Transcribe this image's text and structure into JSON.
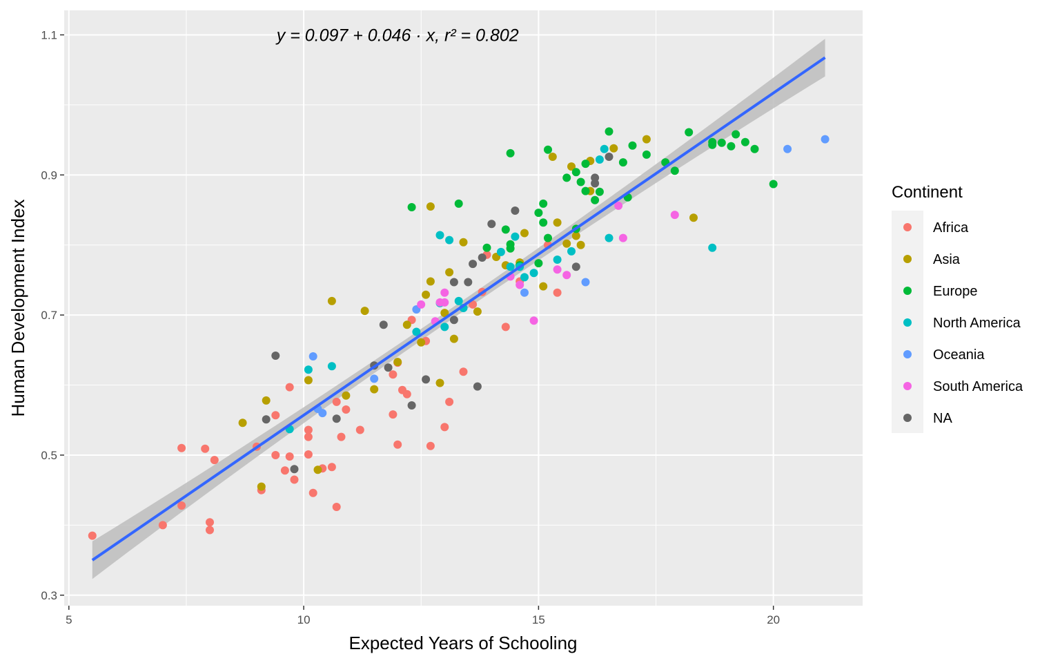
{
  "chart_data": {
    "type": "scatter",
    "xlabel": "Expected Years of Schooling",
    "ylabel": "Human Development Index",
    "xlim": [
      4.9,
      21.9
    ],
    "ylim": [
      0.285,
      1.135
    ],
    "x_ticks": [
      5,
      10,
      15,
      20
    ],
    "x_tick_labels": [
      "5",
      "10",
      "15",
      "20"
    ],
    "y_ticks": [
      0.3,
      0.5,
      0.7,
      0.9,
      1.1
    ],
    "y_tick_labels": [
      "0.3",
      "0.5",
      "0.7",
      "0.9",
      "1.1"
    ],
    "grid": true,
    "legend": {
      "title": "Continent",
      "placement": "right",
      "entries": [
        "Africa",
        "Asia",
        "Europe",
        "North America",
        "Oceania",
        "South America",
        "NA"
      ]
    },
    "annotation": "y = 0.097 + 0.046 · x,  r² = 0.802",
    "annotation_position": {
      "x": 12.0,
      "y": 1.1
    },
    "regression": {
      "intercept": 0.097,
      "slope": 0.046,
      "r2": 0.802,
      "x_range": [
        5.5,
        21.1
      ]
    },
    "colors": {
      "Africa": "#F8766D",
      "Asia": "#B79F00",
      "Europe": "#00BA38",
      "North America": "#00BFC4",
      "Oceania": "#619CFF",
      "South America": "#F564E3",
      "NA": "#666666",
      "line": "#3366FF",
      "ribbon": "#BDBDBD",
      "panel": "#EBEBEB",
      "grid": "#FFFFFF"
    },
    "series": [
      {
        "name": "Africa",
        "points": [
          [
            5.5,
            0.385
          ],
          [
            7.0,
            0.4
          ],
          [
            7.4,
            0.51
          ],
          [
            7.4,
            0.428
          ],
          [
            7.9,
            0.509
          ],
          [
            8.0,
            0.404
          ],
          [
            8.0,
            0.393
          ],
          [
            8.1,
            0.493
          ],
          [
            9.0,
            0.512
          ],
          [
            9.1,
            0.45
          ],
          [
            9.4,
            0.557
          ],
          [
            9.4,
            0.5
          ],
          [
            9.6,
            0.478
          ],
          [
            9.7,
            0.597
          ],
          [
            9.7,
            0.498
          ],
          [
            9.8,
            0.465
          ],
          [
            10.1,
            0.536
          ],
          [
            10.1,
            0.526
          ],
          [
            10.1,
            0.501
          ],
          [
            10.2,
            0.446
          ],
          [
            10.4,
            0.481
          ],
          [
            10.6,
            0.483
          ],
          [
            10.7,
            0.576
          ],
          [
            10.7,
            0.426
          ],
          [
            10.8,
            0.526
          ],
          [
            10.9,
            0.565
          ],
          [
            11.2,
            0.536
          ],
          [
            11.9,
            0.558
          ],
          [
            11.9,
            0.615
          ],
          [
            12.0,
            0.632
          ],
          [
            12.0,
            0.515
          ],
          [
            12.1,
            0.593
          ],
          [
            12.2,
            0.587
          ],
          [
            12.3,
            0.693
          ],
          [
            12.6,
            0.663
          ],
          [
            12.7,
            0.513
          ],
          [
            13.0,
            0.54
          ],
          [
            13.1,
            0.576
          ],
          [
            13.4,
            0.619
          ],
          [
            13.6,
            0.715
          ],
          [
            13.8,
            0.733
          ],
          [
            13.9,
            0.786
          ],
          [
            14.3,
            0.683
          ],
          [
            14.6,
            0.748
          ],
          [
            15.2,
            0.8
          ],
          [
            15.4,
            0.732
          ]
        ]
      },
      {
        "name": "Asia",
        "points": [
          [
            8.7,
            0.546
          ],
          [
            9.1,
            0.455
          ],
          [
            9.2,
            0.578
          ],
          [
            10.1,
            0.607
          ],
          [
            10.3,
            0.479
          ],
          [
            10.6,
            0.72
          ],
          [
            10.9,
            0.585
          ],
          [
            11.3,
            0.706
          ],
          [
            11.5,
            0.594
          ],
          [
            12.0,
            0.633
          ],
          [
            12.2,
            0.686
          ],
          [
            12.5,
            0.661
          ],
          [
            12.6,
            0.729
          ],
          [
            12.7,
            0.855
          ],
          [
            12.7,
            0.748
          ],
          [
            12.9,
            0.603
          ],
          [
            13.0,
            0.703
          ],
          [
            13.1,
            0.761
          ],
          [
            13.2,
            0.666
          ],
          [
            13.4,
            0.804
          ],
          [
            13.7,
            0.705
          ],
          [
            14.1,
            0.783
          ],
          [
            14.3,
            0.771
          ],
          [
            14.6,
            0.775
          ],
          [
            14.7,
            0.817
          ],
          [
            15.1,
            0.741
          ],
          [
            15.3,
            0.926
          ],
          [
            15.4,
            0.832
          ],
          [
            15.6,
            0.802
          ],
          [
            15.7,
            0.912
          ],
          [
            15.8,
            0.813
          ],
          [
            15.9,
            0.8
          ],
          [
            16.1,
            0.877
          ],
          [
            16.1,
            0.92
          ],
          [
            16.6,
            0.938
          ],
          [
            17.3,
            0.951
          ],
          [
            18.3,
            0.839
          ]
        ]
      },
      {
        "name": "Europe",
        "points": [
          [
            12.3,
            0.854
          ],
          [
            13.3,
            0.859
          ],
          [
            13.9,
            0.796
          ],
          [
            14.3,
            0.822
          ],
          [
            14.4,
            0.931
          ],
          [
            14.4,
            0.801
          ],
          [
            14.4,
            0.795
          ],
          [
            14.6,
            0.771
          ],
          [
            15.0,
            0.846
          ],
          [
            15.0,
            0.774
          ],
          [
            15.1,
            0.859
          ],
          [
            15.1,
            0.832
          ],
          [
            15.2,
            0.936
          ],
          [
            15.2,
            0.81
          ],
          [
            15.6,
            0.896
          ],
          [
            15.8,
            0.904
          ],
          [
            15.8,
            0.823
          ],
          [
            15.9,
            0.89
          ],
          [
            16.0,
            0.916
          ],
          [
            16.0,
            0.877
          ],
          [
            16.2,
            0.864
          ],
          [
            16.3,
            0.876
          ],
          [
            16.5,
            0.962
          ],
          [
            16.8,
            0.918
          ],
          [
            16.9,
            0.868
          ],
          [
            17.0,
            0.942
          ],
          [
            17.3,
            0.929
          ],
          [
            17.7,
            0.918
          ],
          [
            17.9,
            0.906
          ],
          [
            18.2,
            0.961
          ],
          [
            18.7,
            0.947
          ],
          [
            18.7,
            0.943
          ],
          [
            18.9,
            0.946
          ],
          [
            19.1,
            0.941
          ],
          [
            19.2,
            0.958
          ],
          [
            19.4,
            0.947
          ],
          [
            19.6,
            0.937
          ],
          [
            20.0,
            0.887
          ]
        ]
      },
      {
        "name": "North America",
        "points": [
          [
            9.7,
            0.537
          ],
          [
            10.1,
            0.622
          ],
          [
            10.6,
            0.627
          ],
          [
            12.4,
            0.676
          ],
          [
            12.9,
            0.814
          ],
          [
            12.9,
            0.717
          ],
          [
            13.0,
            0.683
          ],
          [
            13.1,
            0.807
          ],
          [
            13.3,
            0.72
          ],
          [
            13.4,
            0.71
          ],
          [
            14.2,
            0.79
          ],
          [
            14.4,
            0.769
          ],
          [
            14.5,
            0.812
          ],
          [
            14.6,
            0.769
          ],
          [
            14.7,
            0.754
          ],
          [
            14.9,
            0.76
          ],
          [
            15.4,
            0.779
          ],
          [
            15.7,
            0.791
          ],
          [
            16.3,
            0.922
          ],
          [
            16.4,
            0.937
          ],
          [
            16.5,
            0.81
          ],
          [
            18.7,
            0.796
          ]
        ]
      },
      {
        "name": "Oceania",
        "points": [
          [
            10.2,
            0.641
          ],
          [
            10.3,
            0.566
          ],
          [
            10.4,
            0.56
          ],
          [
            11.5,
            0.609
          ],
          [
            12.4,
            0.708
          ],
          [
            14.7,
            0.732
          ],
          [
            16.0,
            0.747
          ],
          [
            20.3,
            0.937
          ],
          [
            21.1,
            0.951
          ]
        ]
      },
      {
        "name": "South America",
        "points": [
          [
            12.5,
            0.715
          ],
          [
            12.8,
            0.691
          ],
          [
            12.9,
            0.718
          ],
          [
            13.0,
            0.732
          ],
          [
            13.0,
            0.718
          ],
          [
            14.4,
            0.755
          ],
          [
            14.6,
            0.743
          ],
          [
            14.9,
            0.692
          ],
          [
            15.4,
            0.765
          ],
          [
            15.6,
            0.757
          ],
          [
            16.7,
            0.856
          ],
          [
            16.8,
            0.81
          ],
          [
            17.9,
            0.843
          ]
        ]
      },
      {
        "name": "NA",
        "points": [
          [
            9.2,
            0.551
          ],
          [
            9.4,
            0.642
          ],
          [
            9.8,
            0.48
          ],
          [
            10.7,
            0.552
          ],
          [
            11.5,
            0.628
          ],
          [
            11.7,
            0.686
          ],
          [
            11.8,
            0.625
          ],
          [
            12.3,
            0.571
          ],
          [
            12.6,
            0.608
          ],
          [
            13.2,
            0.693
          ],
          [
            13.2,
            0.747
          ],
          [
            13.5,
            0.747
          ],
          [
            13.6,
            0.773
          ],
          [
            13.7,
            0.598
          ],
          [
            13.8,
            0.782
          ],
          [
            14.0,
            0.83
          ],
          [
            14.5,
            0.849
          ],
          [
            15.8,
            0.769
          ],
          [
            16.2,
            0.896
          ],
          [
            16.2,
            0.888
          ],
          [
            16.5,
            0.926
          ]
        ]
      }
    ]
  }
}
